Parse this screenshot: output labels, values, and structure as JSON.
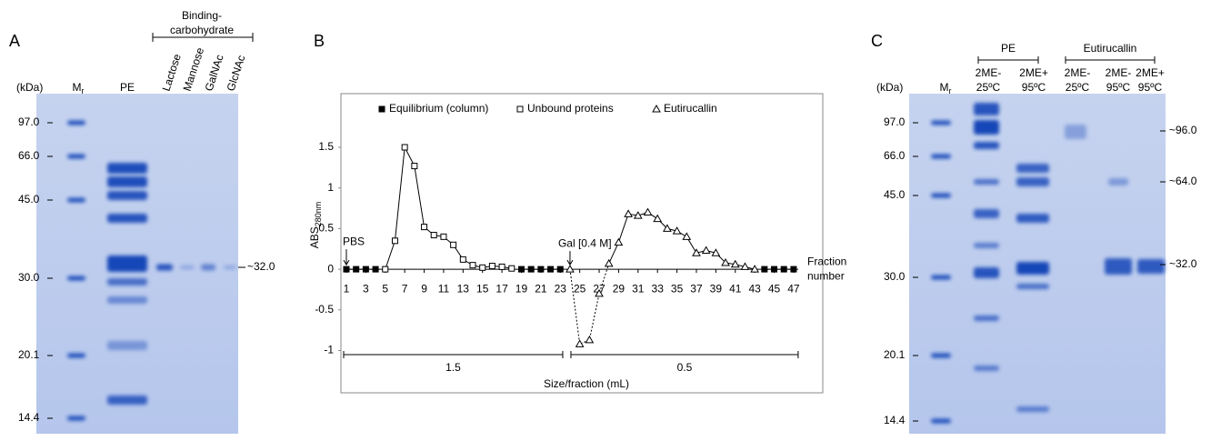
{
  "panel_a": {
    "label": "A",
    "unit": "(kDa)",
    "marker_lane": "M",
    "marker_lane_sub": "r",
    "group_label": [
      "Binding-",
      "carbohydrate"
    ],
    "lanes": [
      "PE",
      "Lactose",
      "Mannose",
      "GalNAc",
      "GlcNAc"
    ],
    "markers": [
      "97.0",
      "66.0",
      "45.0",
      "30.0",
      "20.1",
      "14.4"
    ],
    "band_label": "~32.0"
  },
  "panel_c": {
    "label": "C",
    "unit": "(kDa)",
    "marker_lane": "M",
    "marker_lane_sub": "r",
    "groups": [
      {
        "name": "PE",
        "lanes": [
          [
            "2ME-",
            "25ºC"
          ],
          [
            "2ME+",
            "95ºC"
          ]
        ]
      },
      {
        "name": "Eutirucallin",
        "lanes": [
          [
            "2ME-",
            "25ºC"
          ],
          [
            "2ME-",
            "95ºC"
          ],
          [
            "2ME+",
            "95ºC"
          ]
        ]
      }
    ],
    "markers": [
      "97.0",
      "66.0",
      "45.0",
      "30.0",
      "20.1",
      "14.4"
    ],
    "band_labels": [
      "~96.0",
      "~64.0",
      "~32.0"
    ]
  },
  "chart_data": {
    "type": "line",
    "panel_label": "B",
    "y_label": "ABS",
    "y_label_sub": "280nm",
    "x_label": [
      "Fraction",
      "number"
    ],
    "annotations": [
      "PBS",
      "Gal [0.4 M]"
    ],
    "size_label": "Size/fraction (mL)",
    "size_values": [
      "1.5",
      "0.5"
    ],
    "xlim": [
      0.44,
      50
    ],
    "ylim": [
      -1.52,
      2.16
    ],
    "xticks": [
      1,
      3,
      5,
      7,
      9,
      11,
      13,
      15,
      17,
      19,
      21,
      23,
      25,
      27,
      29,
      31,
      33,
      35,
      37,
      39,
      41,
      43,
      45,
      47
    ],
    "yticks": [
      -1,
      -0.5,
      0,
      0.5,
      1,
      1.5
    ],
    "series": [
      {
        "name": "Equilibrium (column)",
        "color": "#000000",
        "marker": "filled-square",
        "x": [
          1,
          2,
          3,
          4,
          19,
          20,
          21,
          22,
          23,
          44,
          45,
          46,
          47
        ],
        "values": [
          0,
          0,
          0,
          0,
          0,
          0,
          0,
          0,
          0,
          0,
          0,
          0,
          0
        ]
      },
      {
        "name": "Unbound proteins",
        "color": "#000000",
        "marker": "open-square",
        "x": [
          5,
          6,
          7,
          8,
          9,
          10,
          11,
          12,
          13,
          14,
          15,
          16,
          17,
          18
        ],
        "values": [
          0,
          0.35,
          1.5,
          1.27,
          0.52,
          0.42,
          0.4,
          0.3,
          0.12,
          0.05,
          0.02,
          0.04,
          0.03,
          0.01
        ]
      },
      {
        "name": "Eutirucallin",
        "color": "#000000",
        "marker": "open-triangle",
        "dotted_segment": [
          24,
          28
        ],
        "x": [
          24,
          25,
          26,
          27,
          28,
          29,
          30,
          31,
          32,
          33,
          34,
          35,
          36,
          37,
          38,
          39,
          40,
          41,
          42,
          43
        ],
        "values": [
          0,
          -0.92,
          -0.87,
          -0.3,
          0.07,
          0.33,
          0.68,
          0.66,
          0.7,
          0.62,
          0.5,
          0.47,
          0.4,
          0.2,
          0.23,
          0.2,
          0.08,
          0.06,
          0.03,
          0
        ]
      }
    ]
  }
}
